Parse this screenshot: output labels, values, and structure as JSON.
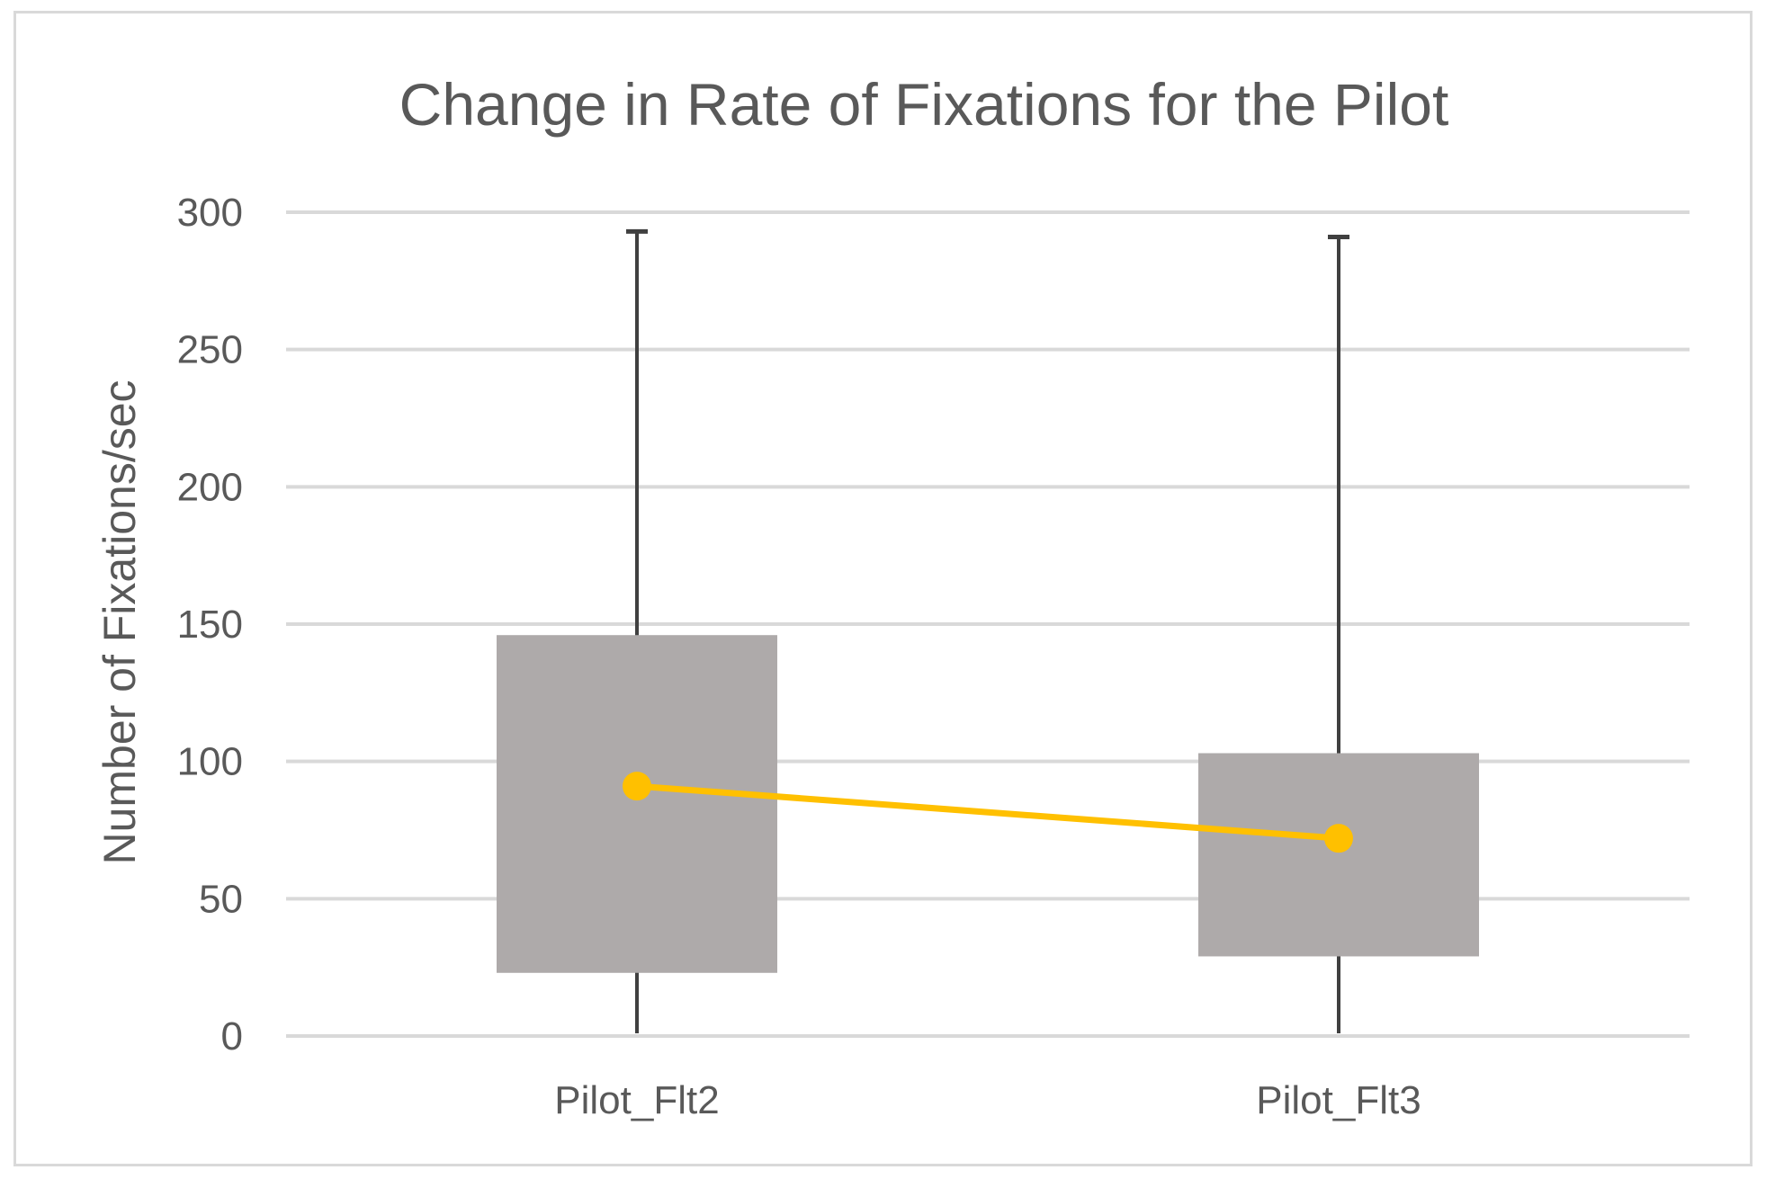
{
  "chart_data": {
    "type": "box",
    "title": "Change in Rate of Fixations for the Pilot",
    "xlabel": "",
    "ylabel": "Number of Fixations/sec",
    "ylim": [
      0,
      300
    ],
    "yticks": [
      "0",
      "50",
      "100",
      "150",
      "200",
      "250",
      "300"
    ],
    "grid": true,
    "legend": "none",
    "categories": [
      "Pilot_Flt2",
      "Pilot_Flt3"
    ],
    "boxes": [
      {
        "category": "Pilot_Flt2",
        "whisker_low": 1,
        "q1": 23,
        "q3": 146,
        "whisker_high": 293,
        "mean": 91
      },
      {
        "category": "Pilot_Flt3",
        "whisker_low": 1,
        "q1": 29,
        "q3": 103,
        "whisker_high": 291,
        "mean": 72
      }
    ],
    "colors": {
      "box": "#aeaaaa",
      "whisker": "#404040",
      "mean_line": "#ffc000",
      "gridline": "#d9d9d9",
      "text": "#595959",
      "frame": "#d9d9d9"
    }
  }
}
